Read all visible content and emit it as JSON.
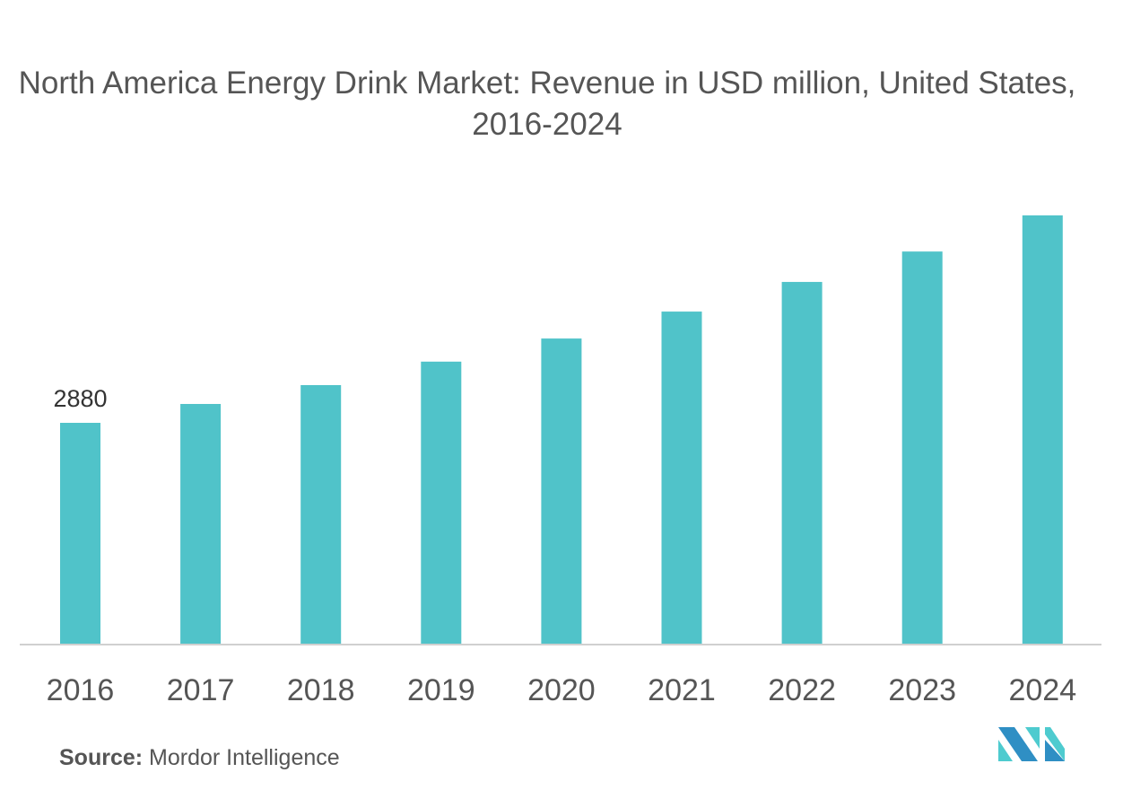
{
  "chart_data": {
    "type": "bar",
    "title": "North America Energy Drink Market: Revenue in USD million, United States, 2016-2024",
    "categories": [
      "2016",
      "2017",
      "2018",
      "2019",
      "2020",
      "2021",
      "2022",
      "2023",
      "2024"
    ],
    "values": [
      2880,
      3125,
      3370,
      3675,
      3975,
      4325,
      4710,
      5105,
      5575
    ],
    "data_labels": {
      "2016": "2880"
    },
    "xlabel": "",
    "ylabel": "",
    "ylim": [
      0,
      6200
    ],
    "grid": false,
    "bar_color": "#50c3c9",
    "axis_color": "#d0d0d0"
  },
  "source": {
    "label": "Source:",
    "text": " Mordor Intelligence"
  },
  "logo": {
    "name": "mordor-intelligence-logo",
    "colors": [
      "#2f8fc4",
      "#4ecbcf"
    ]
  }
}
